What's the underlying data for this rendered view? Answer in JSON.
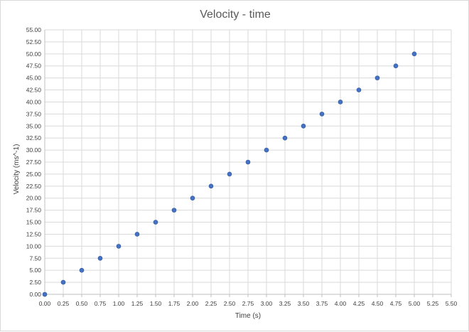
{
  "chart_data": {
    "type": "scatter",
    "title": "Velocity - time",
    "xlabel": "Time (s)",
    "ylabel": "Velocity (ms^-1)",
    "xlim": [
      0,
      5.5
    ],
    "ylim": [
      0,
      55
    ],
    "xticks": [
      "0.00",
      "0.25",
      "0.50",
      "0.75",
      "1.00",
      "1.25",
      "1.50",
      "1.75",
      "2.00",
      "2.25",
      "2.50",
      "2.75",
      "3.00",
      "3.25",
      "3.50",
      "3.75",
      "4.00",
      "4.25",
      "4.50",
      "4.75",
      "5.00",
      "5.25",
      "5.50"
    ],
    "yticks": [
      "0.00",
      "2.50",
      "5.00",
      "7.50",
      "10.00",
      "12.50",
      "15.00",
      "17.50",
      "20.00",
      "22.50",
      "25.00",
      "27.50",
      "30.00",
      "32.50",
      "35.00",
      "37.50",
      "40.00",
      "42.50",
      "45.00",
      "47.50",
      "50.00",
      "52.50",
      "55.00"
    ],
    "grid": true,
    "legend": "none",
    "marker_color": "#4472c4",
    "x": [
      0,
      0.25,
      0.5,
      0.75,
      1.0,
      1.25,
      1.5,
      1.75,
      2.0,
      2.25,
      2.5,
      2.75,
      3.0,
      3.25,
      3.5,
      3.75,
      4.0,
      4.25,
      4.5,
      4.75,
      5.0
    ],
    "y": [
      0,
      2.5,
      5,
      7.5,
      10,
      12.5,
      15,
      17.5,
      20,
      22.5,
      25,
      27.5,
      30,
      32.5,
      35,
      37.5,
      40,
      42.5,
      45,
      47.5,
      50
    ]
  }
}
